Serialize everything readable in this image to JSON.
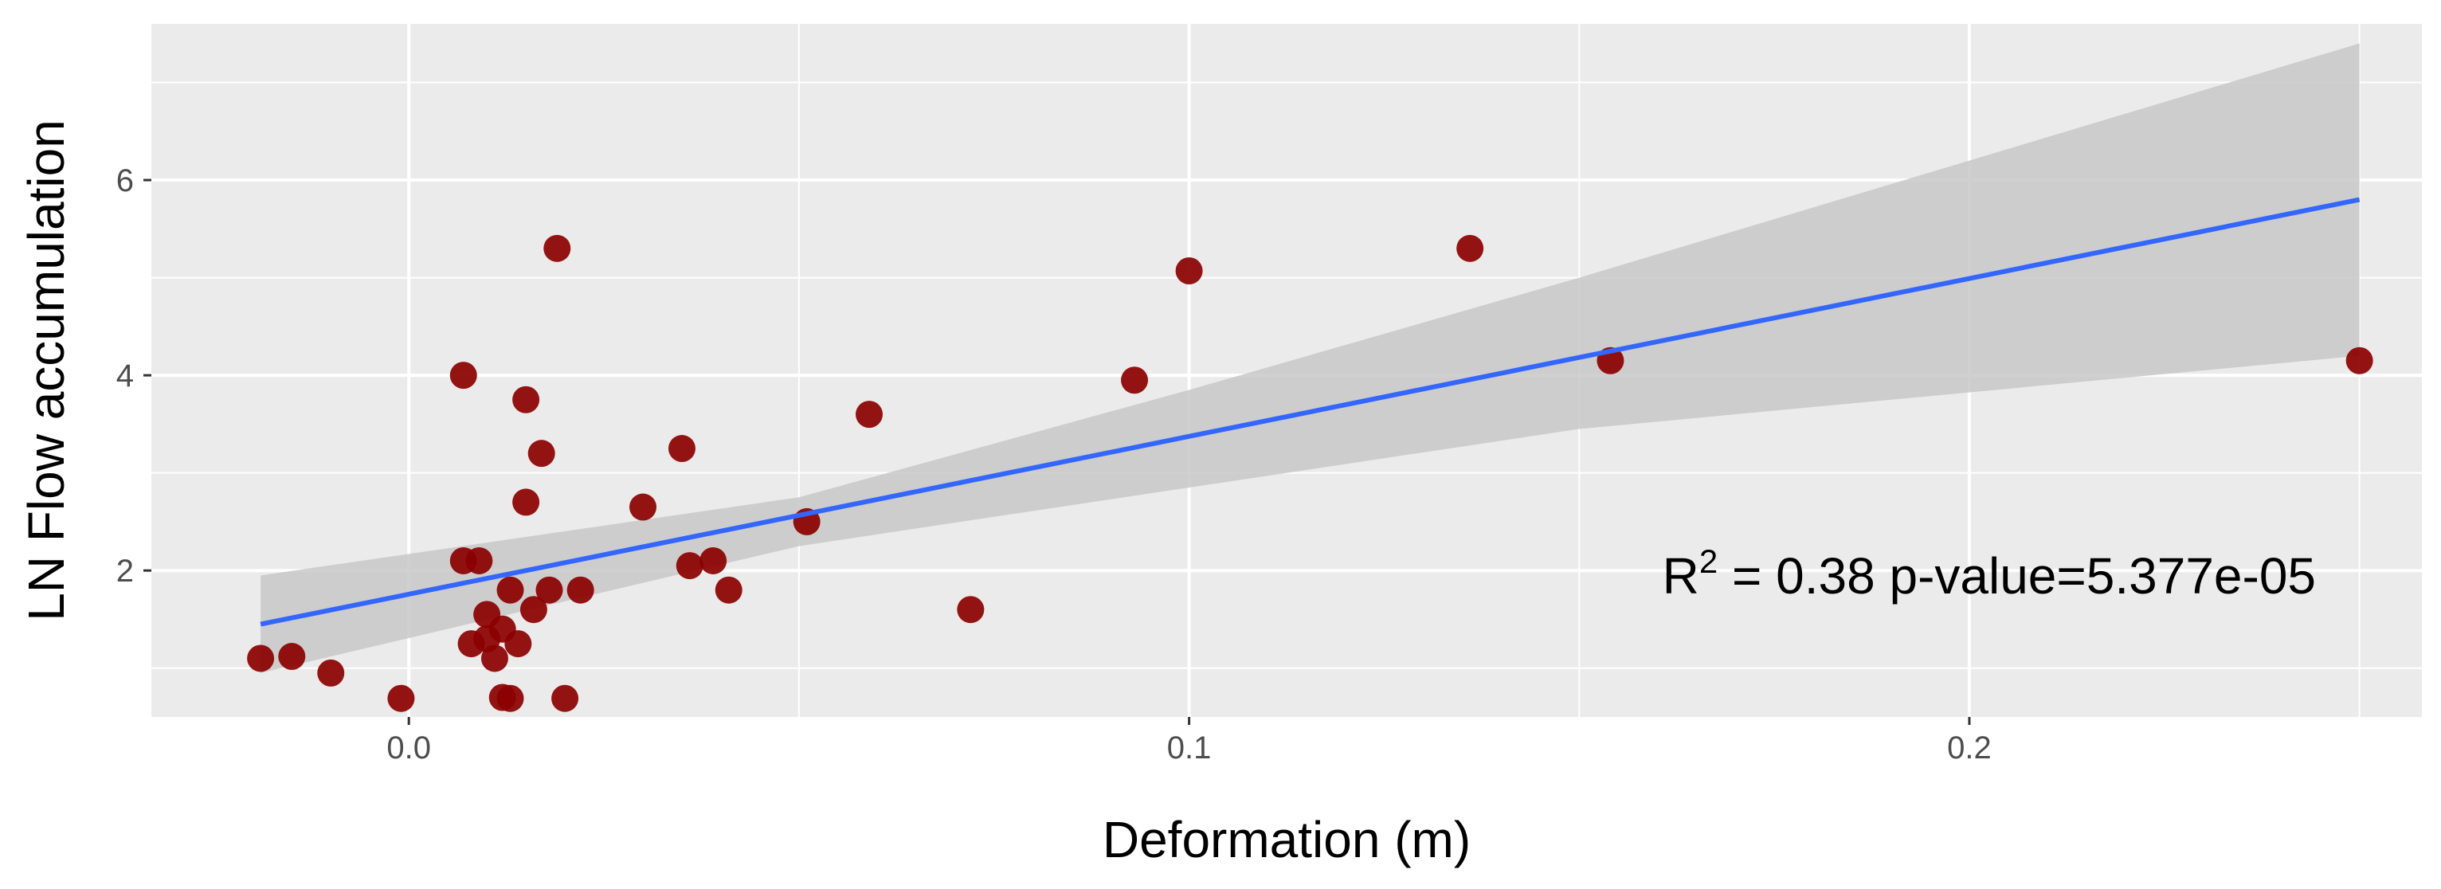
{
  "chart_data": {
    "type": "scatter",
    "xlabel": "Deformation (m)",
    "ylabel": "LN Flow accumulation",
    "xlim": [
      -0.033,
      0.258
    ],
    "ylim": [
      0.5,
      7.6
    ],
    "x_ticks": [
      0.0,
      0.1,
      0.2
    ],
    "x_tick_labels": [
      "0.0",
      "0.1",
      "0.2"
    ],
    "y_ticks": [
      2,
      4,
      6
    ],
    "y_tick_labels": [
      "2",
      "4",
      "6"
    ],
    "grid": true,
    "colors": {
      "panel": "#ebebeb",
      "grid": "#ffffff",
      "points": "#8b0000",
      "fit_line": "#3366ff",
      "confidence_band": "#c8c8c8"
    },
    "series": [
      {
        "name": "observations",
        "points": [
          {
            "x": -0.019,
            "y": 1.1
          },
          {
            "x": -0.015,
            "y": 1.12
          },
          {
            "x": -0.01,
            "y": 0.95
          },
          {
            "x": -0.001,
            "y": 0.69
          },
          {
            "x": 0.007,
            "y": 4.0
          },
          {
            "x": 0.007,
            "y": 2.1
          },
          {
            "x": 0.009,
            "y": 2.1
          },
          {
            "x": 0.008,
            "y": 1.25
          },
          {
            "x": 0.01,
            "y": 1.3
          },
          {
            "x": 0.01,
            "y": 1.55
          },
          {
            "x": 0.011,
            "y": 1.1
          },
          {
            "x": 0.012,
            "y": 1.4
          },
          {
            "x": 0.012,
            "y": 0.7
          },
          {
            "x": 0.013,
            "y": 1.8
          },
          {
            "x": 0.013,
            "y": 0.69
          },
          {
            "x": 0.014,
            "y": 1.25
          },
          {
            "x": 0.015,
            "y": 2.7
          },
          {
            "x": 0.015,
            "y": 3.75
          },
          {
            "x": 0.016,
            "y": 1.6
          },
          {
            "x": 0.017,
            "y": 3.2
          },
          {
            "x": 0.018,
            "y": 1.8
          },
          {
            "x": 0.019,
            "y": 5.3
          },
          {
            "x": 0.02,
            "y": 0.69
          },
          {
            "x": 0.022,
            "y": 1.8
          },
          {
            "x": 0.03,
            "y": 2.65
          },
          {
            "x": 0.035,
            "y": 3.25
          },
          {
            "x": 0.036,
            "y": 2.05
          },
          {
            "x": 0.039,
            "y": 2.1
          },
          {
            "x": 0.041,
            "y": 1.8
          },
          {
            "x": 0.051,
            "y": 2.5
          },
          {
            "x": 0.059,
            "y": 3.6
          },
          {
            "x": 0.072,
            "y": 1.6
          },
          {
            "x": 0.093,
            "y": 3.95
          },
          {
            "x": 0.1,
            "y": 5.07
          },
          {
            "x": 0.136,
            "y": 5.3
          },
          {
            "x": 0.154,
            "y": 4.15
          },
          {
            "x": 0.25,
            "y": 4.15
          }
        ]
      },
      {
        "name": "linear fit",
        "line": [
          {
            "x": -0.019,
            "y": 1.45
          },
          {
            "x": 0.25,
            "y": 5.8
          }
        ],
        "band_lower": [
          {
            "x": -0.019,
            "y": 0.95
          },
          {
            "x": 0.05,
            "y": 2.25
          },
          {
            "x": 0.1,
            "y": 2.85
          },
          {
            "x": 0.15,
            "y": 3.45
          },
          {
            "x": 0.25,
            "y": 4.2
          }
        ],
        "band_upper": [
          {
            "x": -0.019,
            "y": 1.95
          },
          {
            "x": 0.05,
            "y": 2.75
          },
          {
            "x": 0.1,
            "y": 3.85
          },
          {
            "x": 0.15,
            "y": 5.0
          },
          {
            "x": 0.25,
            "y": 7.4
          }
        ]
      }
    ],
    "annotation": {
      "r_label": "R",
      "r_exponent": "2",
      "stats_text": " = 0.38 p-value=5.377e-05"
    }
  }
}
